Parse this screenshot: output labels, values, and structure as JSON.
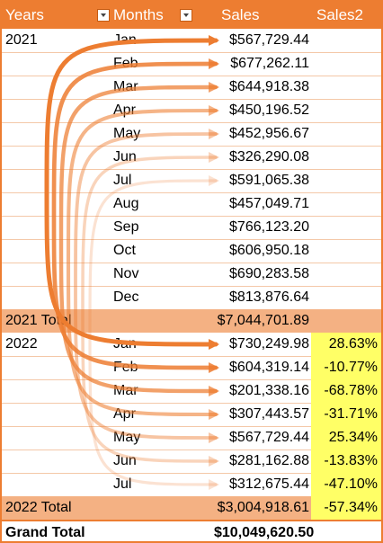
{
  "header": {
    "years": "Years",
    "months": "Months",
    "sales": "Sales",
    "sales2": "Sales2"
  },
  "rows": [
    {
      "year": "2021",
      "month": "Jan",
      "sales": "$567,729.44",
      "sales2": ""
    },
    {
      "year": "",
      "month": "Feb",
      "sales": "$677,262.11",
      "sales2": ""
    },
    {
      "year": "",
      "month": "Mar",
      "sales": "$644,918.38",
      "sales2": ""
    },
    {
      "year": "",
      "month": "Apr",
      "sales": "$450,196.52",
      "sales2": ""
    },
    {
      "year": "",
      "month": "May",
      "sales": "$452,956.67",
      "sales2": ""
    },
    {
      "year": "",
      "month": "Jun",
      "sales": "$326,290.08",
      "sales2": ""
    },
    {
      "year": "",
      "month": "Jul",
      "sales": "$591,065.38",
      "sales2": ""
    },
    {
      "year": "",
      "month": "Aug",
      "sales": "$457,049.71",
      "sales2": ""
    },
    {
      "year": "",
      "month": "Sep",
      "sales": "$766,123.20",
      "sales2": ""
    },
    {
      "year": "",
      "month": "Oct",
      "sales": "$606,950.18",
      "sales2": ""
    },
    {
      "year": "",
      "month": "Nov",
      "sales": "$690,283.58",
      "sales2": ""
    },
    {
      "year": "",
      "month": "Dec",
      "sales": "$813,876.64",
      "sales2": ""
    },
    {
      "year": "2021 Total",
      "month": "",
      "sales": "$7,044,701.89",
      "sales2": "",
      "type": "total"
    },
    {
      "year": "2022",
      "month": "Jan",
      "sales": "$730,249.98",
      "sales2": "28.63%"
    },
    {
      "year": "",
      "month": "Feb",
      "sales": "$604,319.14",
      "sales2": "-10.77%"
    },
    {
      "year": "",
      "month": "Mar",
      "sales": "$201,338.16",
      "sales2": "-68.78%"
    },
    {
      "year": "",
      "month": "Apr",
      "sales": "$307,443.57",
      "sales2": "-31.71%"
    },
    {
      "year": "",
      "month": "May",
      "sales": "$567,729.44",
      "sales2": "25.34%"
    },
    {
      "year": "",
      "month": "Jun",
      "sales": "$281,162.88",
      "sales2": "-13.83%"
    },
    {
      "year": "",
      "month": "Jul",
      "sales": "$312,675.44",
      "sales2": "-47.10%"
    },
    {
      "year": "2022 Total",
      "month": "",
      "sales": "$3,004,918.61",
      "sales2": "-57.34%",
      "type": "total"
    },
    {
      "year": "Grand Total",
      "month": "",
      "sales": "$10,049,620.50",
      "sales2": "",
      "type": "grand"
    }
  ],
  "colors": {
    "accent": "#ed7d31",
    "total_fill": "#f4b183",
    "highlight": "#ffff66"
  }
}
